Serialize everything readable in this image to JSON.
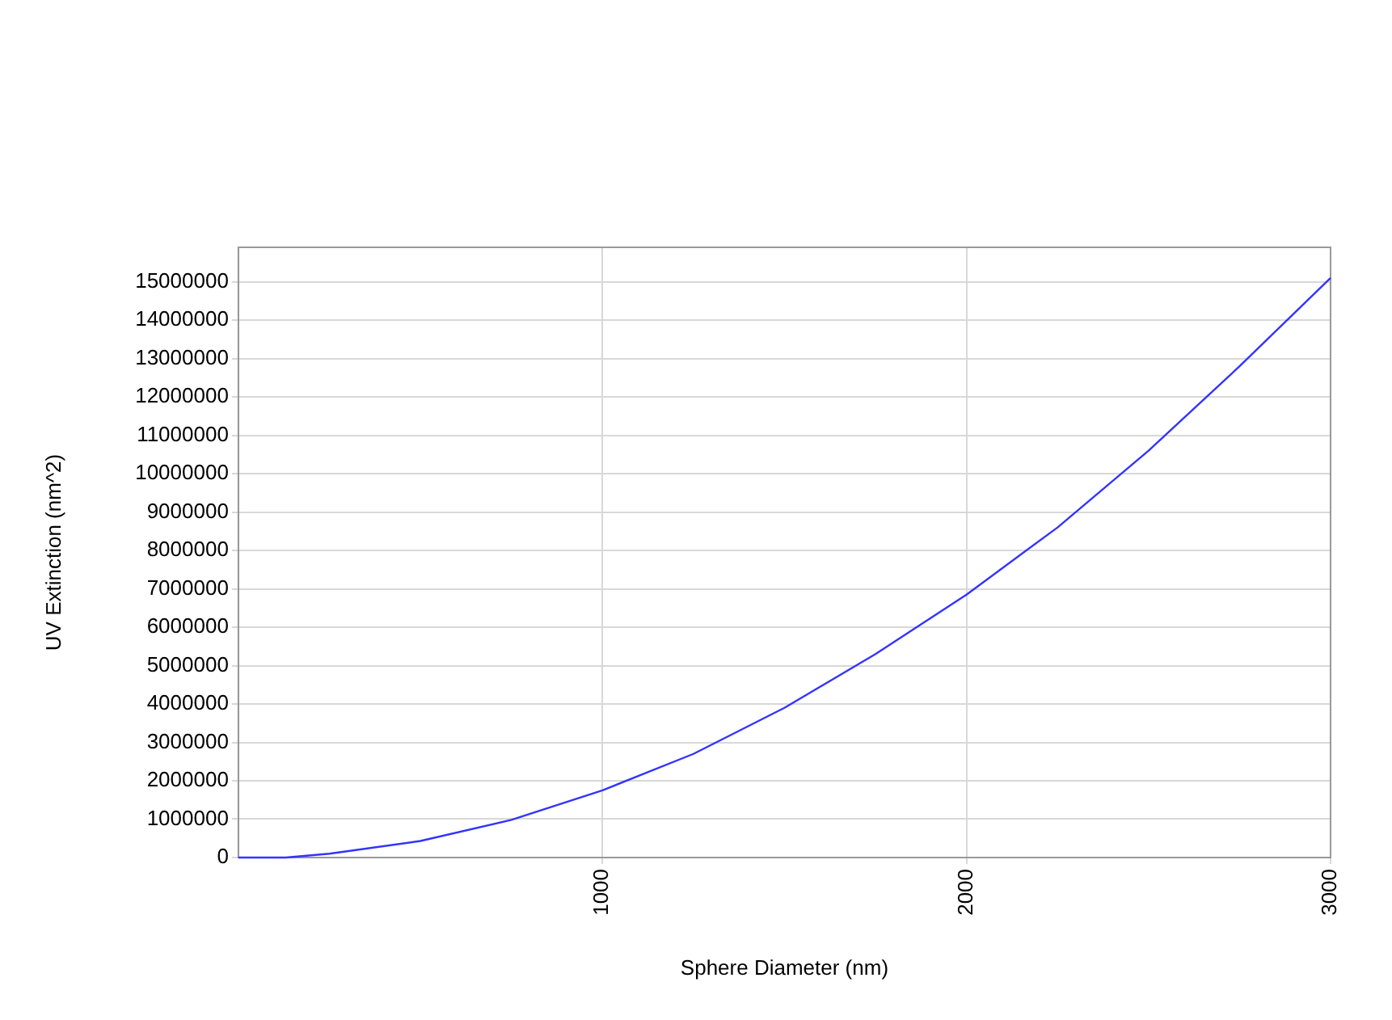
{
  "chart_data": {
    "type": "line",
    "xlabel": "Sphere Diameter (nm)",
    "ylabel": "UV Extinction (nm^2)",
    "x": [
      0,
      130,
      250,
      500,
      750,
      1000,
      1250,
      1500,
      1750,
      2000,
      2250,
      2500,
      2750,
      3000
    ],
    "series": [
      {
        "color": "#3333ff",
        "values": [
          0,
          0,
          100000,
          430000,
          980000,
          1750000,
          2700000,
          3900000,
          5300000,
          6850000,
          8600000,
          10600000,
          12800000,
          15100000
        ]
      }
    ],
    "xlim": [
      0,
      3000
    ],
    "xticks": [
      1000,
      2000,
      3000
    ],
    "ylim": [
      0,
      15900000
    ],
    "yticks": [
      0,
      1000000,
      2000000,
      3000000,
      4000000,
      5000000,
      6000000,
      7000000,
      8000000,
      9000000,
      10000000,
      11000000,
      12000000,
      13000000,
      14000000,
      15000000
    ],
    "grid": true,
    "marker": "none",
    "line_style": "solid",
    "legend": false
  }
}
